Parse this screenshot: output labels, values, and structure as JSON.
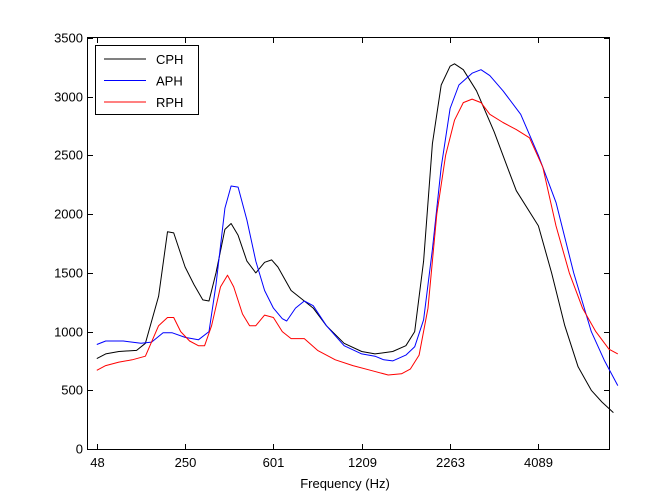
{
  "chart_data": {
    "type": "line",
    "title": "",
    "xlabel": "Frequency (Hz)",
    "ylabel": "",
    "x_axis": {
      "scale": "index (roughly logarithmic frequency)",
      "range": [
        -0.1,
        5.8
      ],
      "tick_positions": [
        0,
        1,
        2,
        3,
        4,
        5
      ],
      "tick_labels": [
        "48",
        "250",
        "601",
        "1209",
        "2263",
        "4089"
      ]
    },
    "ylim": [
      0,
      3500
    ],
    "yticks": [
      0,
      500,
      1000,
      1500,
      2000,
      2500,
      3000,
      3500
    ],
    "grid": false,
    "legend_position": "top-left",
    "series": [
      {
        "name": "CPH",
        "color": "#000000",
        "points": [
          [
            0.0,
            770
          ],
          [
            0.1,
            810
          ],
          [
            0.25,
            830
          ],
          [
            0.45,
            840
          ],
          [
            0.55,
            900
          ],
          [
            0.7,
            1300
          ],
          [
            0.8,
            1850
          ],
          [
            0.87,
            1840
          ],
          [
            1.0,
            1550
          ],
          [
            1.1,
            1400
          ],
          [
            1.2,
            1270
          ],
          [
            1.27,
            1260
          ],
          [
            1.35,
            1500
          ],
          [
            1.45,
            1870
          ],
          [
            1.52,
            1920
          ],
          [
            1.6,
            1820
          ],
          [
            1.7,
            1600
          ],
          [
            1.8,
            1500
          ],
          [
            1.9,
            1590
          ],
          [
            1.98,
            1610
          ],
          [
            2.05,
            1550
          ],
          [
            2.2,
            1350
          ],
          [
            2.3,
            1290
          ],
          [
            2.45,
            1200
          ],
          [
            2.6,
            1050
          ],
          [
            2.8,
            900
          ],
          [
            3.0,
            830
          ],
          [
            3.15,
            810
          ],
          [
            3.35,
            830
          ],
          [
            3.5,
            880
          ],
          [
            3.6,
            1000
          ],
          [
            3.7,
            1600
          ],
          [
            3.8,
            2600
          ],
          [
            3.9,
            3100
          ],
          [
            4.0,
            3260
          ],
          [
            4.05,
            3280
          ],
          [
            4.15,
            3230
          ],
          [
            4.3,
            3050
          ],
          [
            4.5,
            2700
          ],
          [
            4.65,
            2400
          ],
          [
            4.75,
            2200
          ],
          [
            5.0,
            1900
          ],
          [
            5.15,
            1500
          ],
          [
            5.3,
            1050
          ],
          [
            5.45,
            700
          ],
          [
            5.6,
            500
          ],
          [
            5.72,
            400
          ],
          [
            5.85,
            310
          ]
        ]
      },
      {
        "name": "APH",
        "color": "#0000ff",
        "points": [
          [
            0.0,
            890
          ],
          [
            0.1,
            920
          ],
          [
            0.3,
            920
          ],
          [
            0.5,
            900
          ],
          [
            0.62,
            910
          ],
          [
            0.75,
            990
          ],
          [
            0.85,
            990
          ],
          [
            1.0,
            950
          ],
          [
            1.15,
            930
          ],
          [
            1.27,
            1000
          ],
          [
            1.35,
            1400
          ],
          [
            1.45,
            2050
          ],
          [
            1.52,
            2240
          ],
          [
            1.6,
            2230
          ],
          [
            1.7,
            1950
          ],
          [
            1.8,
            1600
          ],
          [
            1.9,
            1350
          ],
          [
            2.0,
            1200
          ],
          [
            2.1,
            1110
          ],
          [
            2.15,
            1090
          ],
          [
            2.25,
            1200
          ],
          [
            2.35,
            1260
          ],
          [
            2.45,
            1220
          ],
          [
            2.6,
            1050
          ],
          [
            2.8,
            880
          ],
          [
            3.0,
            810
          ],
          [
            3.15,
            790
          ],
          [
            3.25,
            760
          ],
          [
            3.35,
            750
          ],
          [
            3.5,
            800
          ],
          [
            3.6,
            870
          ],
          [
            3.7,
            1100
          ],
          [
            3.8,
            1700
          ],
          [
            3.9,
            2400
          ],
          [
            4.0,
            2900
          ],
          [
            4.1,
            3100
          ],
          [
            4.25,
            3200
          ],
          [
            4.35,
            3230
          ],
          [
            4.45,
            3180
          ],
          [
            4.6,
            3050
          ],
          [
            4.8,
            2850
          ],
          [
            5.0,
            2500
          ],
          [
            5.2,
            2100
          ],
          [
            5.4,
            1500
          ],
          [
            5.6,
            1000
          ],
          [
            5.75,
            750
          ],
          [
            5.9,
            540
          ]
        ]
      },
      {
        "name": "RPH",
        "color": "#ff0000",
        "points": [
          [
            0.0,
            670
          ],
          [
            0.1,
            710
          ],
          [
            0.25,
            740
          ],
          [
            0.4,
            760
          ],
          [
            0.55,
            790
          ],
          [
            0.7,
            1050
          ],
          [
            0.8,
            1120
          ],
          [
            0.87,
            1120
          ],
          [
            0.95,
            1000
          ],
          [
            1.05,
            920
          ],
          [
            1.15,
            880
          ],
          [
            1.22,
            880
          ],
          [
            1.3,
            1050
          ],
          [
            1.4,
            1380
          ],
          [
            1.48,
            1480
          ],
          [
            1.55,
            1380
          ],
          [
            1.65,
            1150
          ],
          [
            1.73,
            1050
          ],
          [
            1.8,
            1050
          ],
          [
            1.9,
            1140
          ],
          [
            2.0,
            1120
          ],
          [
            2.1,
            1000
          ],
          [
            2.2,
            940
          ],
          [
            2.35,
            940
          ],
          [
            2.5,
            840
          ],
          [
            2.7,
            760
          ],
          [
            2.9,
            710
          ],
          [
            3.1,
            670
          ],
          [
            3.3,
            630
          ],
          [
            3.45,
            640
          ],
          [
            3.55,
            680
          ],
          [
            3.65,
            800
          ],
          [
            3.75,
            1200
          ],
          [
            3.85,
            2000
          ],
          [
            3.95,
            2500
          ],
          [
            4.05,
            2800
          ],
          [
            4.15,
            2950
          ],
          [
            4.25,
            2980
          ],
          [
            4.35,
            2950
          ],
          [
            4.45,
            2850
          ],
          [
            4.6,
            2780
          ],
          [
            4.75,
            2720
          ],
          [
            4.9,
            2650
          ],
          [
            5.05,
            2400
          ],
          [
            5.2,
            1900
          ],
          [
            5.35,
            1500
          ],
          [
            5.5,
            1200
          ],
          [
            5.65,
            1000
          ],
          [
            5.8,
            850
          ],
          [
            5.9,
            810
          ]
        ]
      }
    ]
  }
}
